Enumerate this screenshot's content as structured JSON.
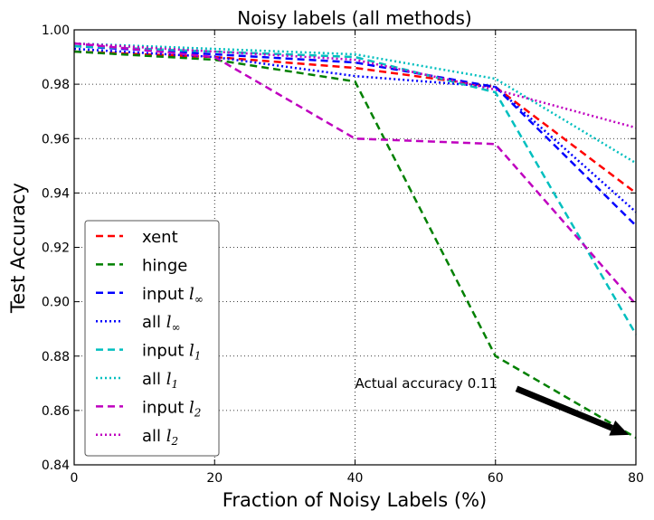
{
  "chart_data": {
    "type": "line",
    "title": "Noisy labels (all methods)",
    "xlabel": "Fraction of Noisy Labels (%)",
    "ylabel": "Test Accuracy",
    "xlim": [
      0,
      80
    ],
    "ylim": [
      0.84,
      1.0
    ],
    "xticks": [
      "0",
      "20",
      "40",
      "60",
      "80"
    ],
    "yticks": [
      "0.84",
      "0.86",
      "0.88",
      "0.90",
      "0.92",
      "0.94",
      "0.96",
      "0.98",
      "1.00"
    ],
    "grid": true,
    "legend_position": "lower-left",
    "x": [
      0,
      20,
      40,
      60,
      80
    ],
    "series": [
      {
        "name": "xent",
        "label": "xent",
        "sub": "",
        "color": "#ff0000",
        "style": "dashed",
        "values": [
          0.992,
          0.99,
          0.986,
          0.979,
          0.94
        ]
      },
      {
        "name": "hinge",
        "label": "hinge",
        "sub": "",
        "color": "#008000",
        "style": "dashed",
        "values": [
          0.992,
          0.989,
          0.981,
          0.88,
          0.85
        ]
      },
      {
        "name": "input l∞",
        "label": "input ",
        "sub": "l∞",
        "color": "#0000ff",
        "style": "dashed",
        "values": [
          0.994,
          0.991,
          0.988,
          0.979,
          0.928
        ]
      },
      {
        "name": "all l∞",
        "label": "all ",
        "sub": "l∞",
        "color": "#0000ff",
        "style": "dotted",
        "values": [
          0.993,
          0.99,
          0.983,
          0.979,
          0.933
        ]
      },
      {
        "name": "input l1",
        "label": "input ",
        "sub": "l1",
        "color": "#00bfbf",
        "style": "dashed",
        "values": [
          0.994,
          0.992,
          0.99,
          0.977,
          0.888
        ]
      },
      {
        "name": "all l1",
        "label": "all ",
        "sub": "l1",
        "color": "#00bfbf",
        "style": "dotted",
        "values": [
          0.995,
          0.993,
          0.991,
          0.982,
          0.951
        ]
      },
      {
        "name": "input l2",
        "label": "input ",
        "sub": "l2",
        "color": "#bf00bf",
        "style": "dashed",
        "values": [
          0.995,
          0.99,
          0.96,
          0.958,
          0.899
        ]
      },
      {
        "name": "all l2",
        "label": "all ",
        "sub": "l2",
        "color": "#bf00bf",
        "style": "dotted",
        "values": [
          0.995,
          0.992,
          0.989,
          0.978,
          0.964
        ]
      }
    ],
    "annotation": {
      "text": "Actual accuracy 0.11",
      "text_at": [
        40,
        0.87
      ],
      "arrow_from": [
        63,
        0.868
      ],
      "arrow_to": [
        79,
        0.851
      ]
    }
  }
}
